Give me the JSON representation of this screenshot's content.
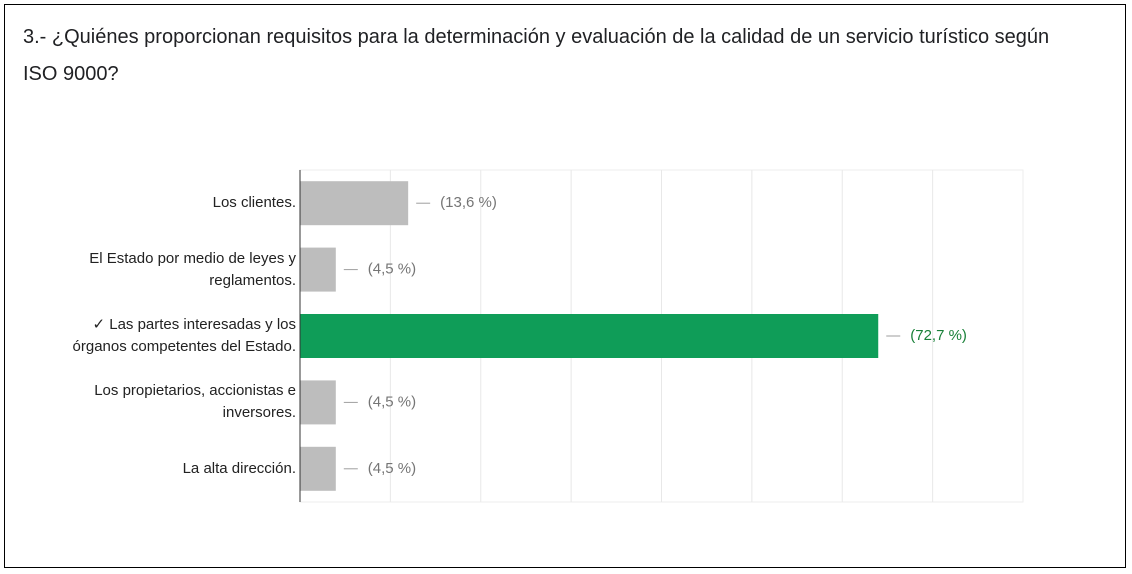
{
  "chart_data": {
    "type": "hbar",
    "title": "3.- ¿Quiénes proporcionan requisitos para la determinación y evaluación de la calidad de un servicio turístico según ISO 9000?",
    "categories": [
      "Los clientes.",
      "El Estado por medio de leyes y reglamentos.",
      "✓ Las partes interesadas y los órganos competentes del Estado.",
      "Los propietarios, accionistas e inversores.",
      "La alta dirección."
    ],
    "values": [
      13.6,
      4.5,
      72.7,
      4.5,
      4.5
    ],
    "value_labels": [
      "(13,6 %)",
      "(4,5 %)",
      "(72,7 %)",
      "(4,5 %)",
      "(4,5 %)"
    ],
    "colors": [
      "#bdbdbd",
      "#bdbdbd",
      "#0f9d58",
      "#bdbdbd",
      "#bdbdbd"
    ],
    "label_colors": [
      "#757575",
      "#757575",
      "#188038",
      "#757575",
      "#757575"
    ],
    "xlim": [
      0,
      90.9
    ],
    "grid": true
  }
}
